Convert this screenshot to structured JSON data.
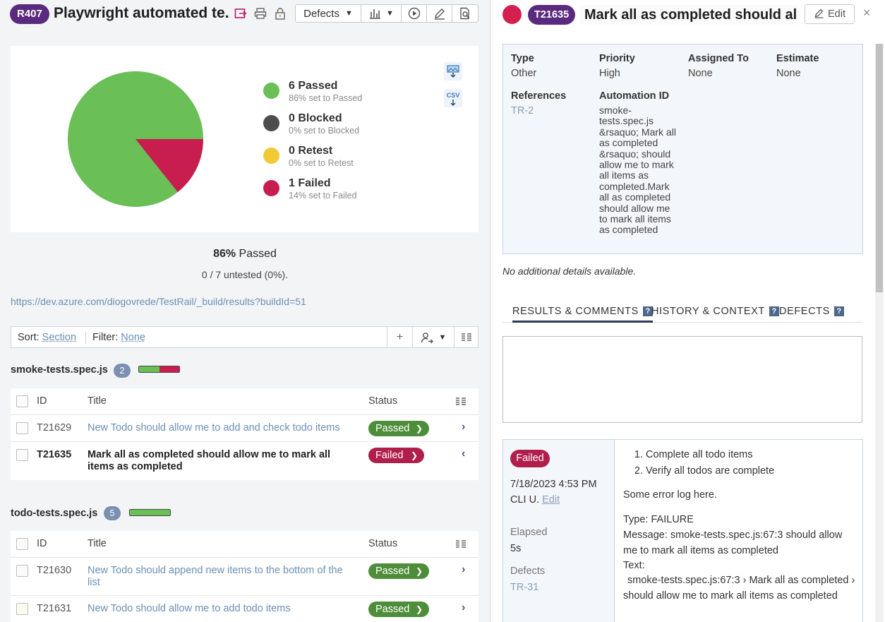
{
  "run": {
    "id": "R407",
    "title": "Playwright automated te...",
    "defects_label": "Defects"
  },
  "pie": {
    "passed_color": "#6abf56",
    "blocked_color": "#4d4d4d",
    "retest_color": "#f0c933",
    "failed_color": "#c81e4f"
  },
  "legend": [
    {
      "count": "6 Passed",
      "sub": "86% set to Passed",
      "color": "#6abf56"
    },
    {
      "count": "0 Blocked",
      "sub": "0% set to Blocked",
      "color": "#4d4d4d"
    },
    {
      "count": "0 Retest",
      "sub": "0% set to Retest",
      "color": "#f0c933"
    },
    {
      "count": "1 Failed",
      "sub": "14% set to Failed",
      "color": "#c81e4f"
    }
  ],
  "export": {
    "chart_label": "",
    "csv_label": "CSV"
  },
  "summary": {
    "percent": "86%",
    "passed_word": "Passed",
    "untested": "0 / 7 untested (0%)."
  },
  "build_link": "https://dev.azure.com/diogovrede/TestRail/_build/results?buildId=51",
  "filterbar": {
    "sort_label": "Sort:",
    "sort_value": "Section",
    "filter_label": "Filter:",
    "filter_value": "None"
  },
  "columns": {
    "id": "ID",
    "title": "Title",
    "status": "Status"
  },
  "sections": [
    {
      "name": "smoke-tests.spec.js",
      "count": "2",
      "rows": [
        {
          "id": "T21629",
          "title": "New Todo should allow me to add and check todo items",
          "status": "Passed"
        },
        {
          "id": "T21635",
          "title": "Mark all as completed should allow me to mark all items as completed",
          "status": "Failed"
        }
      ]
    },
    {
      "name": "todo-tests.spec.js",
      "count": "5",
      "rows": [
        {
          "id": "T21630",
          "title": "New Todo should append new items to the bottom of the list",
          "status": "Passed"
        },
        {
          "id": "T21631",
          "title": "New Todo should allow me to add todo items",
          "status": "Passed"
        }
      ]
    }
  ],
  "detail": {
    "case_id": "T21635",
    "title": "Mark all as completed should al...",
    "edit_label": "Edit",
    "close_glyph": "×",
    "props": {
      "type_label": "Type",
      "type_value": "Other",
      "priority_label": "Priority",
      "priority_value": "High",
      "assigned_label": "Assigned To",
      "assigned_value": "None",
      "estimate_label": "Estimate",
      "estimate_value": "None",
      "references_label": "References",
      "references_value": "TR-2",
      "automation_label": "Automation ID",
      "automation_value": "smoke-tests.spec.js &rsaquo; Mark all as completed &rsaquo; should allow me to mark all items as completed.Mark all as completed should allow me to mark all items as completed"
    },
    "no_details": "No additional details available.",
    "tabs": [
      "RESULTS & COMMENTS",
      "HISTORY & CONTEXT",
      "DEFECTS"
    ],
    "result": {
      "status": "Failed",
      "datetime": "7/18/2023 4:53 PM",
      "user": "CLI U.",
      "edit_label": "Edit",
      "elapsed_label": "Elapsed",
      "elapsed_value": "5s",
      "defects_label": "Defects",
      "defects_value": "TR-31",
      "steps": [
        "Complete all todo items",
        "Verify all todos are complete"
      ],
      "log": "Some error log here.",
      "type_line": "Type: FAILURE",
      "message": "Message: smoke-tests.spec.js:67:3 should allow me to mark all items as completed",
      "text_label": "Text:",
      "text_value": "smoke-tests.spec.js:67:3 › Mark all as completed › should allow me to mark all items as completed"
    }
  }
}
